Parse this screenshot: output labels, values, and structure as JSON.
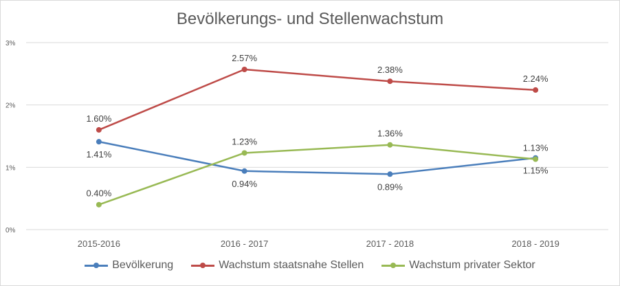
{
  "chart_data": {
    "type": "line",
    "title": "Bevölkerungs- und Stellenwachstum",
    "categories": [
      "2015-2016",
      "2016 - 2017",
      "2017 - 2018",
      "2018 - 2019"
    ],
    "y_ticks": [
      "0%",
      "1%",
      "2%",
      "3%"
    ],
    "ylim": [
      0,
      3
    ],
    "grid": true,
    "legend_position": "bottom",
    "series": [
      {
        "name": "Bevölkerung",
        "color": "#4a7ebb",
        "values": [
          1.41,
          0.94,
          0.89,
          1.15
        ],
        "labels": [
          "1.41%",
          "0.94%",
          "0.89%",
          "1.15%"
        ],
        "label_side": [
          "below",
          "below",
          "below",
          "below"
        ]
      },
      {
        "name": "Wachstum staatsnahe Stellen",
        "color": "#be4b48",
        "values": [
          1.6,
          2.57,
          2.38,
          2.24
        ],
        "labels": [
          "1.60%",
          "2.57%",
          "2.38%",
          "2.24%"
        ],
        "label_side": [
          "above",
          "above",
          "above",
          "above"
        ]
      },
      {
        "name": "Wachstum privater Sektor",
        "color": "#98b954",
        "values": [
          0.4,
          1.23,
          1.36,
          1.13
        ],
        "labels": [
          "0.40%",
          "1.23%",
          "1.36%",
          "1.13%"
        ],
        "label_side": [
          "above",
          "above",
          "above",
          "above"
        ]
      }
    ]
  }
}
